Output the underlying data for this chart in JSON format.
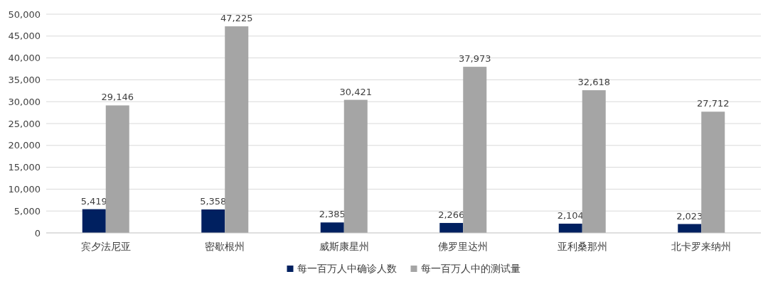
{
  "chart_data": {
    "type": "bar",
    "categories": [
      "宾夕法尼亚",
      "密歇根州",
      "威斯康星州",
      "佛罗里达州",
      "亚利桑那州",
      "北卡罗来纳州"
    ],
    "series": [
      {
        "name": "每一百万人中确诊人数",
        "color": "#002060",
        "values": [
          5419,
          5358,
          2385,
          2266,
          2104,
          2023
        ],
        "value_labels": [
          "5,419",
          "5,358",
          "2,385",
          "2,266",
          "2,104",
          "2,023"
        ]
      },
      {
        "name": "每一百万人中的测试量",
        "color": "#a5a5a5",
        "values": [
          29146,
          47225,
          30421,
          37973,
          32618,
          27712
        ],
        "value_labels": [
          "29,146",
          "47,225",
          "30,421",
          "37,973",
          "32,618",
          "27,712"
        ]
      }
    ],
    "ylim": [
      0,
      50000
    ],
    "yticks": [
      0,
      {
        "value": 5000,
        "label": "5,000"
      },
      {
        "value": 10000,
        "label": "10,000"
      },
      {
        "value": 15000,
        "label": "15,000"
      },
      {
        "value": 20000,
        "label": "20,000"
      },
      {
        "value": 25000,
        "label": "25,000"
      },
      {
        "value": 30000,
        "label": "30,000"
      },
      {
        "value": 35000,
        "label": "35,000"
      },
      {
        "value": 40000,
        "label": "40,000"
      },
      {
        "value": 45000,
        "label": "45,000"
      },
      {
        "value": 50000,
        "label": "50,000"
      }
    ],
    "grid": "y",
    "legend": "bottom"
  }
}
